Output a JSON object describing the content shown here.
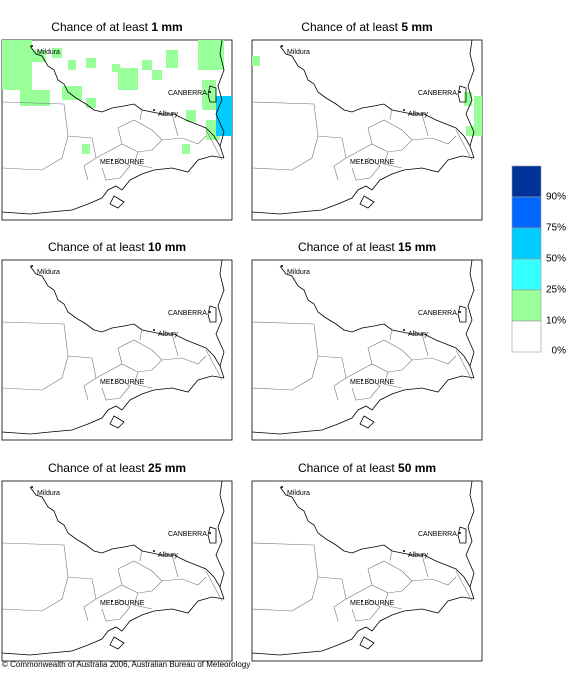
{
  "panels": [
    {
      "title": "Chance of at least",
      "amount": "1 mm"
    },
    {
      "title": "Chance of at least",
      "amount": "5 mm"
    },
    {
      "title": "Chance of at least",
      "amount": "10 mm"
    },
    {
      "title": "Chance of at least",
      "amount": "15 mm"
    },
    {
      "title": "Chance of at least",
      "amount": "25 mm"
    },
    {
      "title": "Chance of at least",
      "amount": "50 mm"
    }
  ],
  "places": [
    "Mildura",
    "CANBERRA",
    "Albury",
    "MELBOURNE"
  ],
  "legend": {
    "colors": [
      "#003399",
      "#0066ff",
      "#00ccff",
      "#33ffff",
      "#99ff99",
      "#ffffff"
    ],
    "labels": [
      "90%",
      "75%",
      "50%",
      "25%",
      "10%",
      "0%"
    ]
  },
  "footer": "© Commonwealth of Australia 2006, Australian Bureau of Meteorology"
}
